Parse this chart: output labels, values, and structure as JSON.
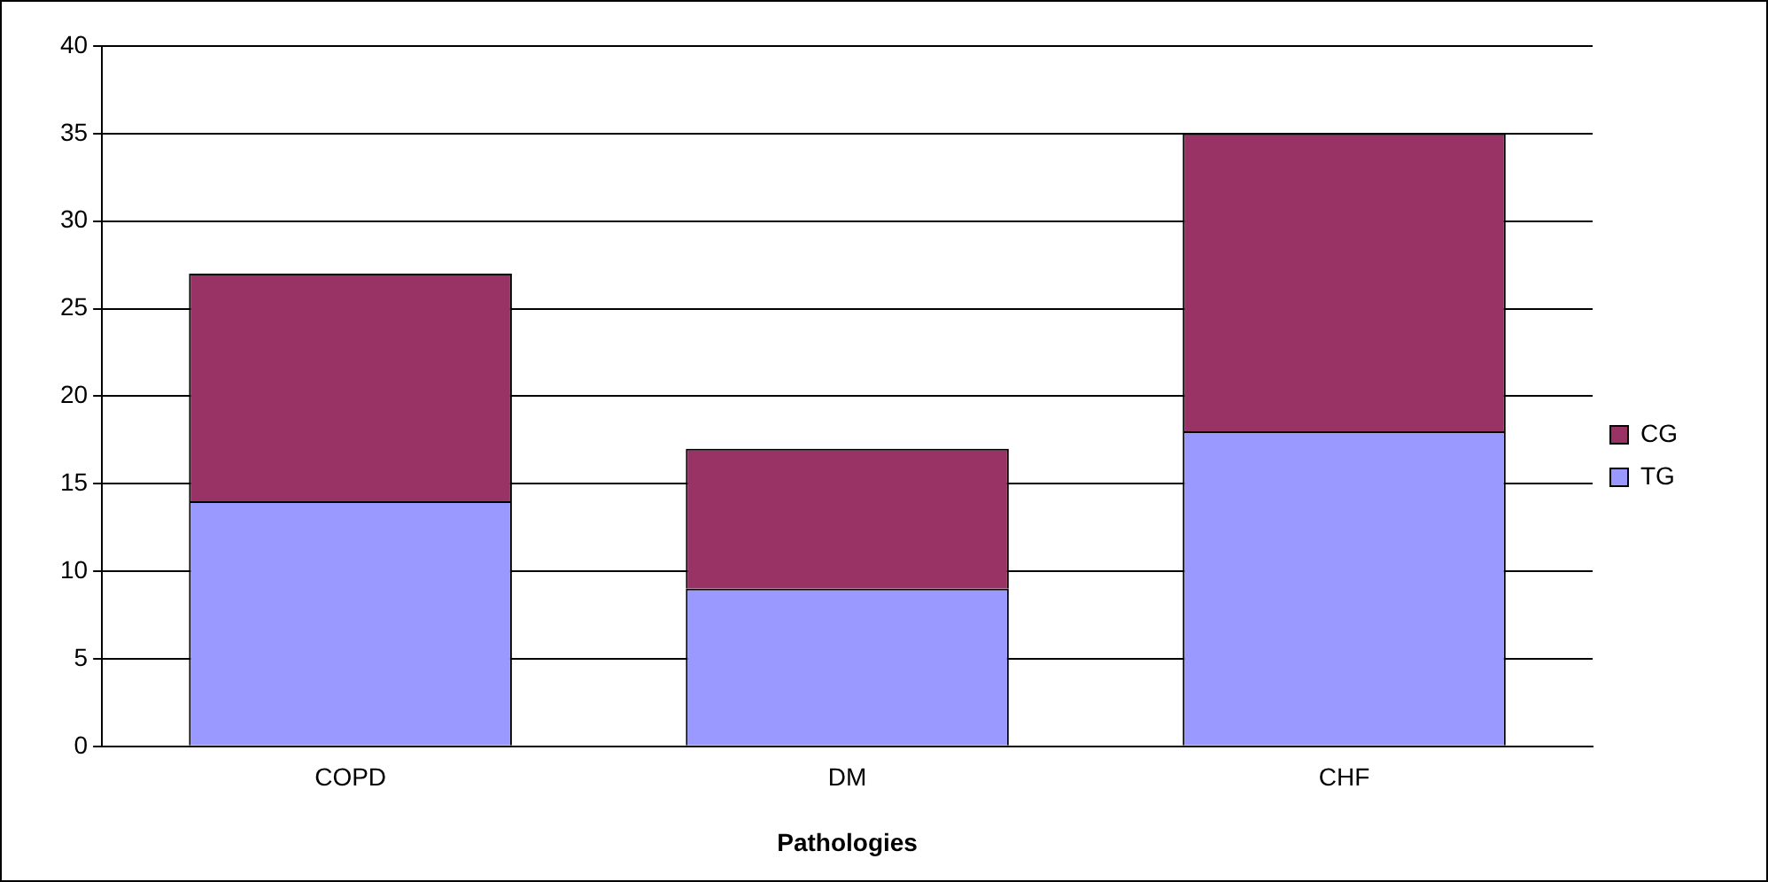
{
  "chart_data": {
    "type": "bar",
    "xlabel": "Pathologies",
    "categories": [
      "COPD",
      "DM",
      "CHF"
    ],
    "stacked": true,
    "series": [
      {
        "name": "TG",
        "color": "#9999ff",
        "values": [
          14,
          9,
          18
        ]
      },
      {
        "name": "CG",
        "color": "#993366",
        "values": [
          13,
          8,
          17
        ]
      }
    ],
    "ylim": [
      0,
      40
    ],
    "yticks": [
      0,
      5,
      10,
      15,
      20,
      25,
      30,
      35,
      40
    ],
    "grid": "y",
    "legend": "right"
  }
}
